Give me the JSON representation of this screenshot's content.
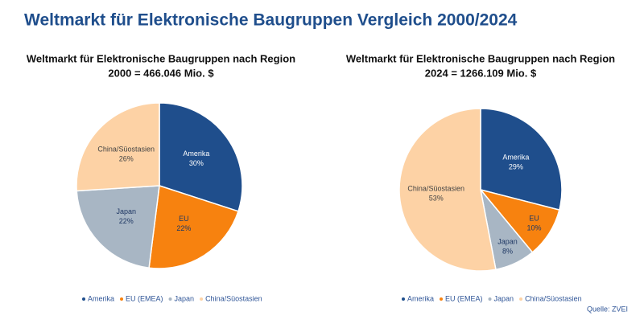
{
  "title": "Weltmarkt für Elektronische Baugruppen Vergleich 2000/2024",
  "source": "Quelle: ZVEI",
  "chart_data": [
    {
      "type": "pie",
      "title": "Weltmarkt für Elektronische Baugruppen nach Region",
      "subtitle": "2000 = 466.046 Mio. $",
      "categories": [
        "Amerika",
        "EU",
        "Japan",
        "China/Süostasien"
      ],
      "legend_labels": [
        "Amerika",
        "EU (EMEA)",
        "Japan",
        "China/Süostasien"
      ],
      "values": [
        30,
        22,
        22,
        26
      ],
      "value_labels": [
        "30%",
        "22%",
        "22%",
        "26%"
      ],
      "colors": [
        "#1f4e8c",
        "#f7820f",
        "#a8b6c4",
        "#fdd2a5"
      ]
    },
    {
      "type": "pie",
      "title": "Weltmarkt für Elektronische Baugruppen nach Region",
      "subtitle": "2024 = 1266.109 Mio. $",
      "categories": [
        "Amerika",
        "EU",
        "Japan",
        "China/Süostasien"
      ],
      "legend_labels": [
        "Amerika",
        "EU (EMEA)",
        "Japan",
        "China/Süostasien"
      ],
      "values": [
        29,
        10,
        8,
        53
      ],
      "value_labels": [
        "29%",
        "10%",
        "8%",
        "53%"
      ],
      "colors": [
        "#1f4e8c",
        "#f7820f",
        "#a8b6c4",
        "#fdd2a5"
      ]
    }
  ]
}
